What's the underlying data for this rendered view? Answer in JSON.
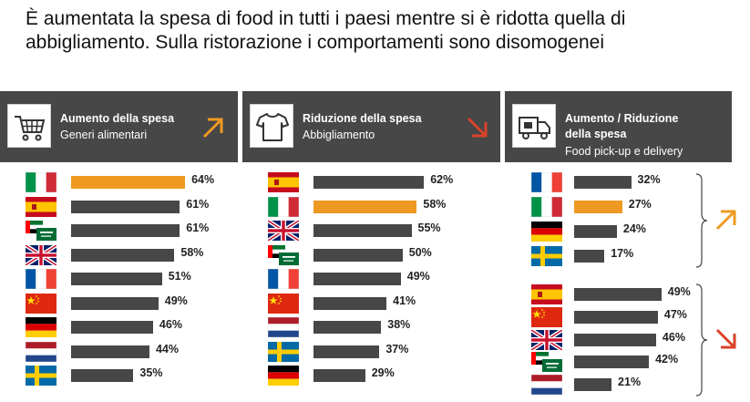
{
  "title": "È aumentata la spesa di food in tutti i paesi mentre si è ridotta quella di abbigliamento. Sulla ristorazione i comportamenti sono disomogenei",
  "colors": {
    "header_bg": "#474747",
    "bar": "#474747",
    "highlight": "#ee9a22",
    "arrow_up": "#ee9a22",
    "arrow_down": "#d9432a"
  },
  "chart_data": [
    {
      "type": "bar",
      "orientation": "horizontal",
      "header": {
        "title": "Aumento della spesa",
        "subtitle": "Generi alimentari",
        "icon": "shopping-cart-icon",
        "arrow": "up"
      },
      "rows": [
        {
          "country": "Italia",
          "flag": "it",
          "label": "64%",
          "value": 64,
          "highlight": true
        },
        {
          "country": "Spagna",
          "flag": "es",
          "label": "61%",
          "value": 61,
          "highlight": false
        },
        {
          "country": "Emirati Arabi / Arabia Saudita",
          "flag": "uae-ksa",
          "label": "61%",
          "value": 61,
          "highlight": false
        },
        {
          "country": "Regno Unito",
          "flag": "uk",
          "label": "58%",
          "value": 58,
          "highlight": false
        },
        {
          "country": "Francia",
          "flag": "fr",
          "label": "51%",
          "value": 51,
          "highlight": false
        },
        {
          "country": "Cina",
          "flag": "cn",
          "label": "49%",
          "value": 49,
          "highlight": false
        },
        {
          "country": "Germania",
          "flag": "de",
          "label": "46%",
          "value": 46,
          "highlight": false
        },
        {
          "country": "Paesi Bassi",
          "flag": "nl",
          "label": "44%",
          "value": 44,
          "highlight": false
        },
        {
          "country": "Svezia",
          "flag": "se",
          "label": "35%",
          "value": 35,
          "highlight": false
        }
      ]
    },
    {
      "type": "bar",
      "orientation": "horizontal",
      "header": {
        "title": "Riduzione della spesa",
        "subtitle": "Abbigliamento",
        "icon": "t-shirt-icon",
        "arrow": "down"
      },
      "rows": [
        {
          "country": "Spagna",
          "flag": "es",
          "label": "62%",
          "value": 62,
          "highlight": false
        },
        {
          "country": "Italia",
          "flag": "it",
          "label": "58%",
          "value": 58,
          "highlight": true
        },
        {
          "country": "Regno Unito",
          "flag": "uk",
          "label": "55%",
          "value": 55,
          "highlight": false
        },
        {
          "country": "Emirati Arabi / Arabia Saudita",
          "flag": "uae-ksa",
          "label": "50%",
          "value": 50,
          "highlight": false
        },
        {
          "country": "Francia",
          "flag": "fr",
          "label": "49%",
          "value": 49,
          "highlight": false
        },
        {
          "country": "Cina",
          "flag": "cn",
          "label": "41%",
          "value": 41,
          "highlight": false
        },
        {
          "country": "Paesi Bassi",
          "flag": "nl",
          "label": "38%",
          "value": 38,
          "highlight": false
        },
        {
          "country": "Svezia",
          "flag": "se",
          "label": "37%",
          "value": 37,
          "highlight": false
        },
        {
          "country": "Germania",
          "flag": "de",
          "label": "29%",
          "value": 29,
          "highlight": false
        }
      ]
    },
    {
      "type": "bar",
      "orientation": "horizontal",
      "header": {
        "title": "Aumento / Riduzione",
        "title2": "della spesa",
        "subtitle": "Food pick-up e delivery",
        "icon": "delivery-truck-icon"
      },
      "groups": [
        {
          "direction": "up",
          "rows": [
            {
              "country": "Francia",
              "flag": "fr",
              "label": "32%",
              "value": 32,
              "highlight": false
            },
            {
              "country": "Italia",
              "flag": "it",
              "label": "27%",
              "value": 27,
              "highlight": true
            },
            {
              "country": "Germania",
              "flag": "de",
              "label": "24%",
              "value": 24,
              "highlight": false
            },
            {
              "country": "Svezia",
              "flag": "se",
              "label": "17%",
              "value": 17,
              "highlight": false
            }
          ]
        },
        {
          "direction": "down",
          "rows": [
            {
              "country": "Spagna",
              "flag": "es",
              "label": "49%",
              "value": 49,
              "highlight": false
            },
            {
              "country": "Cina",
              "flag": "cn",
              "label": "47%",
              "value": 47,
              "highlight": false
            },
            {
              "country": "Regno Unito",
              "flag": "uk",
              "label": "46%",
              "value": 46,
              "highlight": false
            },
            {
              "country": "Emirati Arabi / Arabia Saudita",
              "flag": "uae-ksa",
              "label": "42%",
              "value": 42,
              "highlight": false
            },
            {
              "country": "Paesi Bassi",
              "flag": "nl",
              "label": "21%",
              "value": 21,
              "highlight": false
            }
          ]
        }
      ]
    }
  ]
}
